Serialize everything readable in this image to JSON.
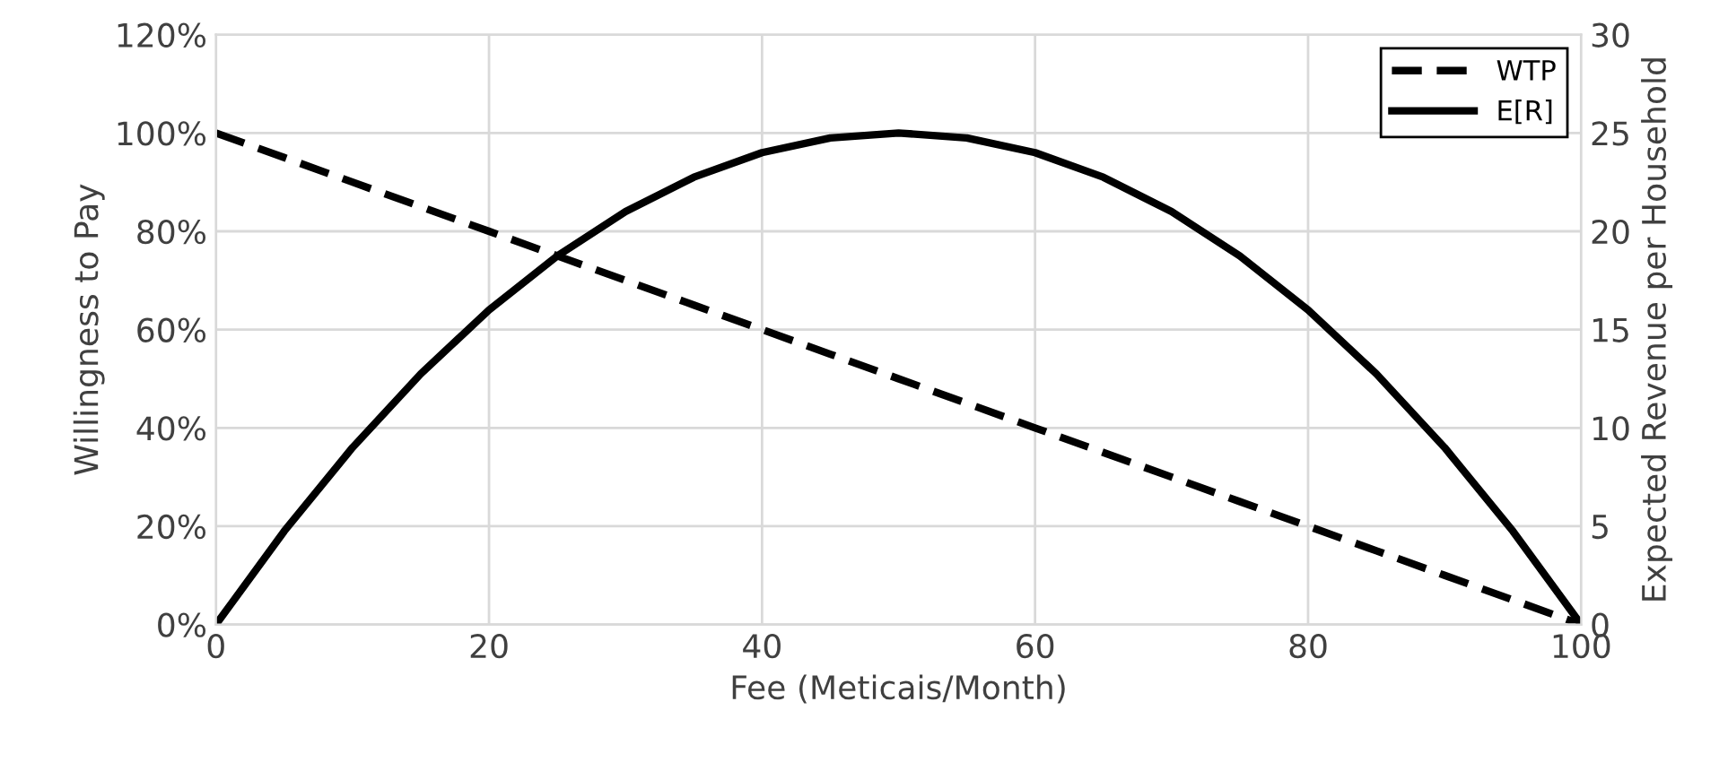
{
  "chart_data": {
    "type": "line",
    "xlabel": "Fee (Meticais/Month)",
    "ylabel": "Willingness to Pay",
    "y2label": "Expected Revenue per Household",
    "x": [
      0,
      5,
      10,
      15,
      20,
      25,
      30,
      35,
      40,
      45,
      50,
      55,
      60,
      65,
      70,
      75,
      80,
      85,
      90,
      95,
      100
    ],
    "series": [
      {
        "name": "WTP",
        "color": "#000000",
        "line_style": "dashed",
        "axis": "y",
        "values": [
          100,
          95,
          90,
          85,
          80,
          75,
          70,
          65,
          60,
          55,
          50,
          45,
          40,
          35,
          30,
          25,
          20,
          15,
          10,
          5,
          0
        ]
      },
      {
        "name": "E[R]",
        "color": "#000000",
        "line_style": "solid",
        "axis": "y2",
        "values": [
          0,
          4.75,
          9,
          12.75,
          16,
          18.75,
          21,
          22.75,
          24,
          24.75,
          25,
          24.75,
          24,
          22.75,
          21,
          18.75,
          16,
          12.75,
          9,
          4.75,
          0
        ]
      }
    ],
    "xlim": [
      0,
      100
    ],
    "xticks": [
      0,
      20,
      40,
      60,
      80,
      100
    ],
    "ylim": [
      0,
      120
    ],
    "yticks": [
      {
        "value": 0,
        "label": "0%"
      },
      {
        "value": 20,
        "label": "20%"
      },
      {
        "value": 40,
        "label": "40%"
      },
      {
        "value": 60,
        "label": "60%"
      },
      {
        "value": 80,
        "label": "80%"
      },
      {
        "value": 100,
        "label": "100%"
      },
      {
        "value": 120,
        "label": "120%"
      }
    ],
    "y2lim": [
      0,
      30
    ],
    "y2ticks": [
      0,
      5,
      10,
      15,
      20,
      25,
      30
    ],
    "grid": true,
    "legend": "top right",
    "marker": "none"
  }
}
